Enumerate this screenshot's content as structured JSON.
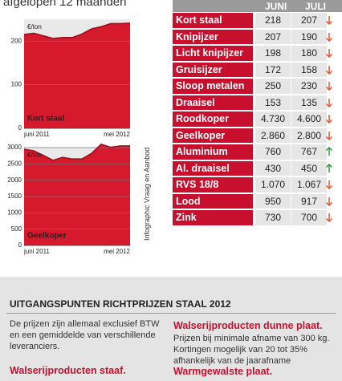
{
  "header": {
    "title": "afgelopen 12 maanden"
  },
  "chart_data": [
    {
      "type": "area",
      "label": "Kort staal",
      "unit_label": "€/ton",
      "color": "#d7192d",
      "line_color": "#9e0f1e",
      "x_labels": [
        "juni 2011",
        "mei 2012"
      ],
      "values": [
        215,
        218,
        212,
        206,
        208,
        208,
        216,
        228,
        233,
        240,
        240,
        241
      ],
      "ylim": [
        0,
        250
      ],
      "yticks": [
        0,
        100,
        200
      ],
      "grid": true
    },
    {
      "type": "area",
      "label": "Geelkoper",
      "unit_label": "€/ton",
      "color": "#d7192d",
      "line_color": "#9e0f1e",
      "x_labels": [
        "juni 2011",
        "mei 2012"
      ],
      "values": [
        2950,
        2900,
        2760,
        2610,
        2700,
        2650,
        2650,
        2820,
        3100,
        3010,
        3050,
        3050
      ],
      "ylim": [
        0,
        3000
      ],
      "yticks": [
        0,
        500,
        1000,
        1500,
        2000,
        2500,
        3000
      ],
      "grid": true
    }
  ],
  "credit": "Infographic Vraag en Aanbod",
  "table": {
    "headers": [
      "JUNI",
      "JULI"
    ],
    "rows": [
      {
        "name": "Kort staal",
        "juni": "218",
        "juli": "207",
        "trend": "down"
      },
      {
        "name": "Knipijzer",
        "juni": "207",
        "juli": "190",
        "trend": "down"
      },
      {
        "name": "Licht knipijzer",
        "juni": "198",
        "juli": "180",
        "trend": "down"
      },
      {
        "name": "Gruisijzer",
        "juni": "172",
        "juli": "158",
        "trend": "down"
      },
      {
        "name": "Sloop metalen",
        "juni": "250",
        "juli": "230",
        "trend": "down"
      },
      {
        "name": "Draaisel",
        "juni": "153",
        "juli": "135",
        "trend": "down"
      },
      {
        "name": "Roodkoper",
        "juni": "4.730",
        "juli": "4.600",
        "trend": "down"
      },
      {
        "name": "Geelkoper",
        "juni": "2.860",
        "juli": "2.800",
        "trend": "down"
      },
      {
        "name": "Aluminium",
        "juni": "760",
        "juli": "767",
        "trend": "up"
      },
      {
        "name": "Al. draaisel",
        "juni": "430",
        "juli": "450",
        "trend": "up"
      },
      {
        "name": "RVS 18/8",
        "juni": "1.070",
        "juli": "1.067",
        "trend": "down"
      },
      {
        "name": "Lood",
        "juni": "950",
        "juli": "917",
        "trend": "down"
      },
      {
        "name": "Zink",
        "juni": "730",
        "juli": "700",
        "trend": "down"
      }
    ]
  },
  "footer": {
    "title": "UITGANGSPUNTEN RICHTPRIJZEN STAAL 2012",
    "left_text": "De prijzen zijn allemaal exclusief BTW en een gemiddelde van verschillende leveranciers.",
    "left_heading": "Walserijproducten staaf.",
    "right_heading": "Walserijproducten dunne plaat.",
    "right_text": "Prijzen bij minimale afname van 300 kg. Kortingen mogelijk van 20 tot 35% afhankelijk van de jaarafname",
    "right_heading2": "Warmgewalste plaat."
  }
}
